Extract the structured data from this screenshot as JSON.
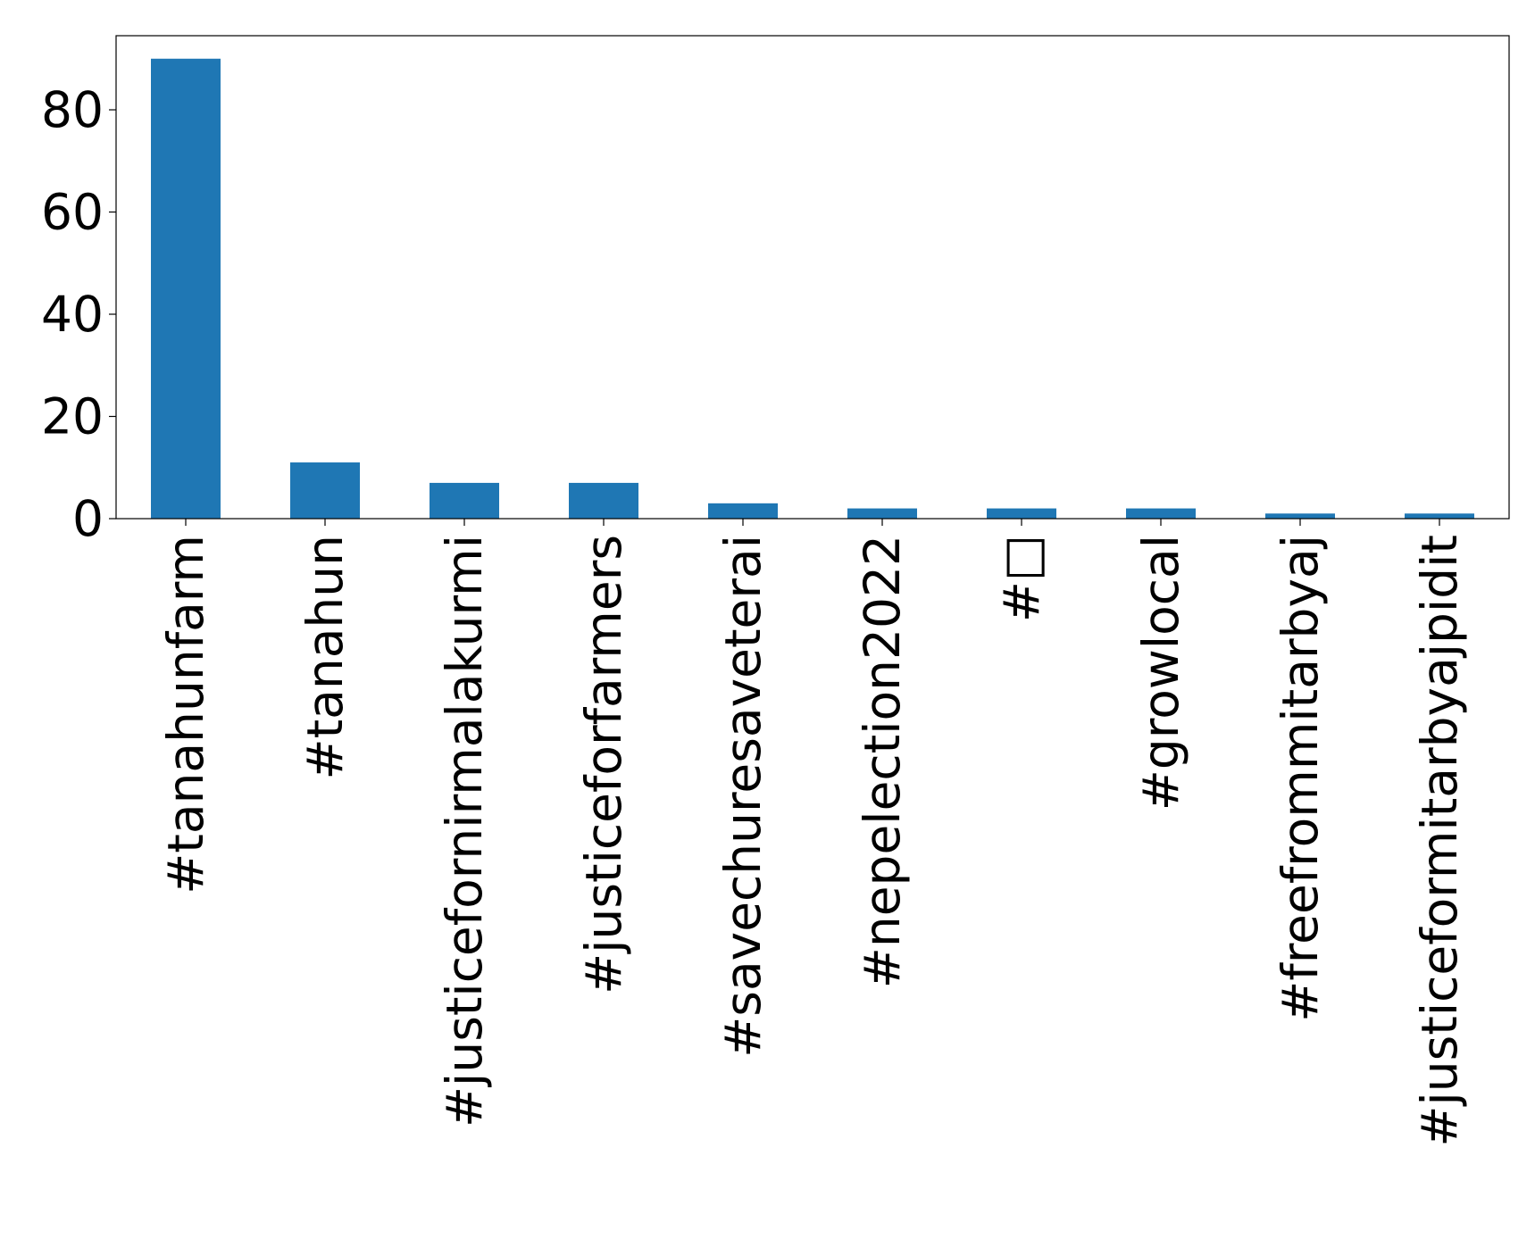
{
  "chart_data": {
    "type": "bar",
    "categories": [
      "#tanahunfarm",
      "#tanahun",
      "#justicefornirmalakurmi",
      "#justiceforfarmers",
      "#savechuresaveterai",
      "#nepelection2022",
      "#□",
      "#growlocal",
      "#freefrommitarbyaj",
      "#justiceformitarbyajpidit"
    ],
    "values": [
      90,
      11,
      7,
      7,
      3,
      2,
      2,
      2,
      1,
      1
    ],
    "title": "",
    "xlabel": "",
    "ylabel": "",
    "ylim": [
      0,
      94.5
    ],
    "yticks": [
      0,
      20,
      40,
      60,
      80
    ],
    "grid": false,
    "legend": "none",
    "colors": {
      "bar": "#1f77b4",
      "axis": "#000000",
      "background": "#ffffff"
    }
  }
}
